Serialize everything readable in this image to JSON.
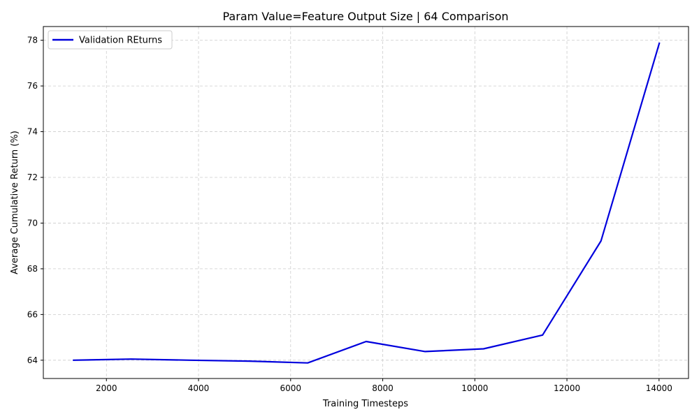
{
  "chart_data": {
    "type": "line",
    "title": "Param Value=Feature Output Size | 64 Comparison",
    "xlabel": "Training Timesteps",
    "ylabel": "Average Cumulative Return (%)",
    "xlim": [
      630,
      14640
    ],
    "ylim": [
      63.2,
      78.6
    ],
    "xticks": [
      2000,
      4000,
      6000,
      8000,
      10000,
      12000,
      14000
    ],
    "yticks": [
      64,
      66,
      68,
      70,
      72,
      74,
      76,
      78
    ],
    "grid": true,
    "legend_position": "top-left",
    "series": [
      {
        "name": "Validation REturns",
        "color": "#0000dd",
        "x": [
          1270,
          2540,
          3820,
          5090,
          6370,
          7640,
          8920,
          10190,
          11470,
          12740,
          14010
        ],
        "y": [
          64.0,
          64.05,
          64.0,
          63.96,
          63.88,
          64.82,
          64.38,
          64.5,
          65.1,
          69.22,
          77.9
        ]
      }
    ]
  }
}
